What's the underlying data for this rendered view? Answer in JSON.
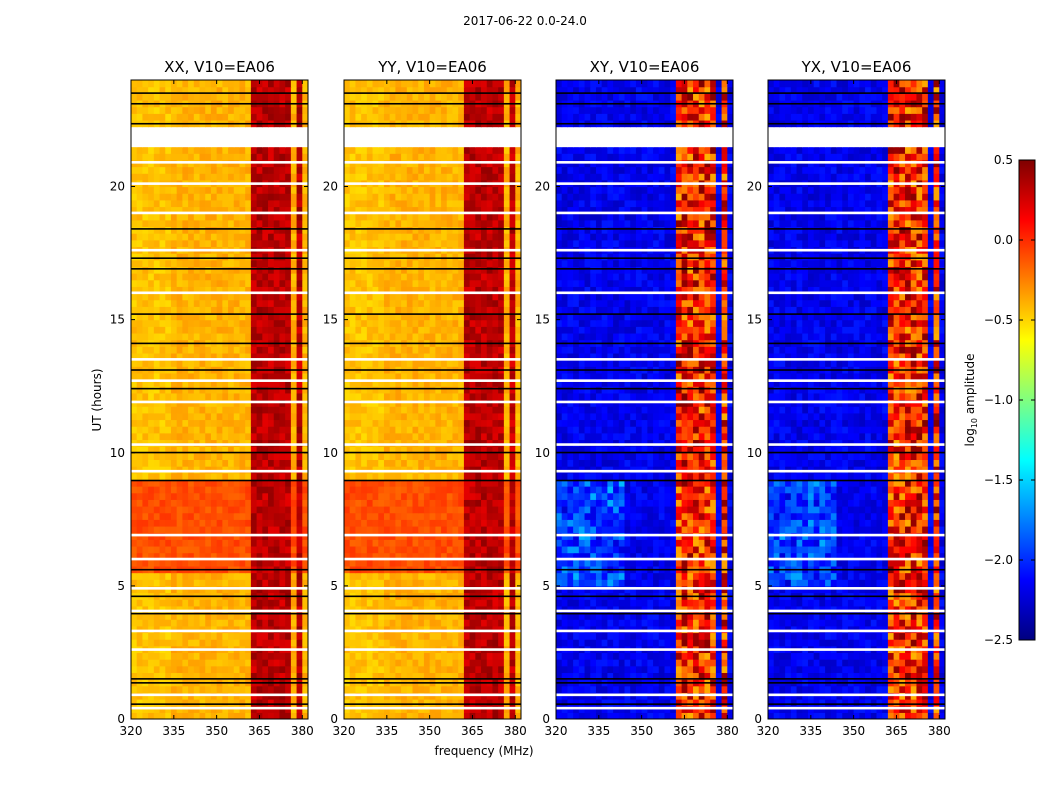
{
  "figure": {
    "suptitle": "2017-06-22 0.0-24.0"
  },
  "chart_data": {
    "type": "heatmap",
    "xlabel": "frequency (MHz)",
    "ylabel": "UT (hours)",
    "xlim": [
      320,
      382
    ],
    "ylim": [
      0,
      24
    ],
    "x_ticks": [
      "320",
      "335",
      "350",
      "365",
      "380"
    ],
    "y_ticks": [
      "0",
      "5",
      "10",
      "15",
      "20"
    ],
    "x_tick_values": [
      320,
      335,
      350,
      365,
      380
    ],
    "y_tick_values": [
      0,
      5,
      10,
      15,
      20
    ],
    "panels": [
      {
        "title": "XX, V10=EA06"
      },
      {
        "title": "YY, V10=EA06"
      },
      {
        "title": "XY, V10=EA06"
      },
      {
        "title": "YX, V10=EA06"
      }
    ],
    "colorbar": {
      "label": "log10 amplitude",
      "label_main": "log",
      "label_sub": "10",
      "label_rest": " amplitude",
      "range": [
        -2.5,
        0.5
      ],
      "tick_values": [
        0.5,
        0.0,
        -0.5,
        -1.0,
        -1.5,
        -2.0,
        -2.5
      ],
      "tick_labels": [
        "0.5",
        "0.0",
        "−0.5",
        "−1.0",
        "−1.5",
        "−2.0",
        "−2.5"
      ],
      "colormap": "jet",
      "jet_stops": [
        "#00007f",
        "#0000ff",
        "#0080ff",
        "#00ffff",
        "#80ff80",
        "#ffff00",
        "#ff8000",
        "#ff0000",
        "#7f0000"
      ]
    },
    "flagged_hours": [
      [
        21.4,
        22.3
      ]
    ],
    "rfi_bands_mhz": [
      [
        363,
        371
      ],
      [
        373,
        376
      ],
      [
        378,
        380
      ]
    ],
    "typical_log10_amplitude": {
      "parallel_hands": -0.4,
      "cross_hands": -2.3,
      "rfi": 0.2
    }
  }
}
